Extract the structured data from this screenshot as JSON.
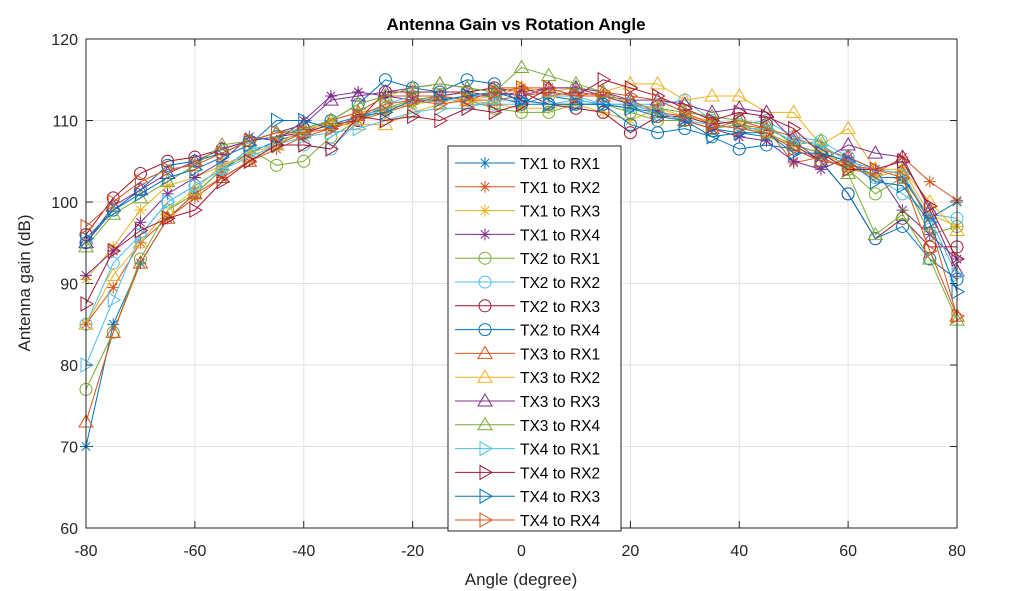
{
  "chart_data": {
    "type": "line",
    "title": "Antenna Gain vs Rotation Angle",
    "xlabel": "Angle (degree)",
    "ylabel": "Antenna gain (dB)",
    "xlim": [
      -80,
      80
    ],
    "ylim": [
      60,
      120
    ],
    "xticks": [
      -80,
      -60,
      -40,
      -20,
      0,
      20,
      40,
      60,
      80
    ],
    "yticks": [
      60,
      70,
      80,
      90,
      100,
      110,
      120
    ],
    "grid": true,
    "legend_position": "center-bottom",
    "x": [
      -80,
      -75,
      -70,
      -65,
      -60,
      -55,
      -50,
      -45,
      -40,
      -35,
      -30,
      -25,
      -20,
      -15,
      -10,
      -5,
      0,
      5,
      10,
      15,
      20,
      25,
      30,
      35,
      40,
      45,
      50,
      55,
      60,
      65,
      70,
      75,
      80
    ],
    "series": [
      {
        "name": "TX1 to RX1",
        "color": "#0072BD",
        "marker": "star",
        "values": [
          70,
          85,
          92.5,
          98,
          101,
          104,
          106,
          107.5,
          108.5,
          109.5,
          110.5,
          111.5,
          112,
          112.5,
          113,
          113,
          112,
          113,
          112.5,
          112,
          111.5,
          111,
          110,
          109,
          108.5,
          108,
          107,
          106,
          105,
          103,
          103,
          98,
          100
        ]
      },
      {
        "name": "TX1 to RX2",
        "color": "#D95319",
        "marker": "star",
        "values": [
          85,
          89.5,
          95,
          98,
          100.5,
          103,
          105,
          106.5,
          108,
          109,
          110,
          111,
          112,
          113,
          113.5,
          114,
          114,
          113,
          113.5,
          113,
          112,
          111,
          110.5,
          110,
          109.5,
          109,
          104.8,
          105.5,
          104,
          103.5,
          105.5,
          102.5,
          100.2
        ]
      },
      {
        "name": "TX1 to RX3",
        "color": "#EDB120",
        "marker": "star",
        "values": [
          90.5,
          94.5,
          99,
          102,
          103,
          104.5,
          106,
          107,
          108.5,
          110,
          111,
          111.5,
          112,
          112.5,
          112.5,
          112,
          111.5,
          111.5,
          112,
          111,
          110,
          111.5,
          110.5,
          110,
          109.5,
          108,
          107,
          106,
          104.5,
          103,
          104,
          98.5,
          97
        ]
      },
      {
        "name": "TX1 to RX4",
        "color": "#7E2F8E",
        "marker": "star",
        "values": [
          91,
          94,
          97.5,
          101,
          103,
          105,
          108,
          107.5,
          110,
          113,
          113.5,
          113,
          112.5,
          113,
          113.5,
          113,
          113.5,
          114,
          114,
          113,
          112,
          111,
          110,
          109,
          108,
          107.5,
          105,
          104,
          105.5,
          104,
          99,
          96,
          93
        ]
      },
      {
        "name": "TX2 to RX1",
        "color": "#77AC30",
        "marker": "circle",
        "values": [
          77,
          84,
          93,
          99,
          101,
          104,
          106.5,
          104.5,
          105,
          108,
          110,
          111.5,
          112.5,
          113,
          112.5,
          111.5,
          111,
          111,
          112,
          112,
          111,
          110,
          110,
          109,
          109.5,
          108.5,
          107,
          106,
          104,
          101,
          103,
          96,
          97
        ]
      },
      {
        "name": "TX2 to RX2",
        "color": "#4DBEEE",
        "marker": "circle",
        "values": [
          85,
          92.5,
          96,
          100,
          102,
          104,
          106.5,
          107,
          107,
          106.5,
          110,
          112,
          113,
          113,
          112,
          112,
          112,
          113,
          113,
          112,
          112,
          112,
          112.5,
          110,
          109.5,
          110,
          108,
          107.5,
          105.5,
          103,
          101,
          98.5,
          98
        ]
      },
      {
        "name": "TX2 to RX3",
        "color": "#A2142F",
        "marker": "circle",
        "values": [
          96,
          100.5,
          103.5,
          105,
          105.5,
          106.5,
          107.5,
          108,
          108.5,
          109.5,
          110,
          113.5,
          113.5,
          113.5,
          113.5,
          114,
          113.5,
          112,
          111.5,
          111,
          108.5,
          110.5,
          110.5,
          109.5,
          110,
          109.5,
          107,
          105,
          101,
          95.5,
          98,
          94.5,
          94.5
        ]
      },
      {
        "name": "TX2 to RX4",
        "color": "#0072BD",
        "marker": "circle",
        "values": [
          95,
          99,
          101.5,
          104.5,
          105,
          106,
          107.5,
          108,
          109,
          110,
          112,
          115,
          114,
          113.5,
          115,
          114.5,
          112,
          112,
          112,
          112,
          109.5,
          108.5,
          109,
          108,
          106.5,
          107,
          106.5,
          105,
          101,
          95.5,
          97,
          93,
          90.5
        ]
      },
      {
        "name": "TX3 to RX1",
        "color": "#D95319",
        "marker": "triangle-up",
        "values": [
          73,
          84,
          92.5,
          98,
          101,
          103,
          105,
          107,
          108.5,
          110,
          111,
          113,
          113,
          113,
          112.5,
          112.5,
          113,
          113.5,
          113,
          113,
          112.5,
          111,
          110,
          109,
          110,
          109,
          108,
          106.5,
          105.5,
          104,
          103.5,
          97.5,
          86
        ]
      },
      {
        "name": "TX3 to RX2",
        "color": "#EDB120",
        "marker": "triangle-up",
        "values": [
          85,
          91,
          95,
          99,
          101.5,
          104.5,
          105.5,
          107,
          109,
          109.5,
          109.5,
          109.5,
          111,
          112,
          112.5,
          113,
          114,
          113.5,
          114,
          113.5,
          114.5,
          114.5,
          112.5,
          113,
          113,
          111,
          111,
          107,
          109,
          104,
          104,
          100,
          96.5
        ]
      },
      {
        "name": "TX3 to RX3",
        "color": "#7E2F8E",
        "marker": "triangle-up",
        "values": [
          95,
          99.5,
          101.5,
          103.5,
          105,
          106.5,
          107.5,
          108.5,
          109.5,
          112.5,
          113,
          113.5,
          114,
          114.5,
          114,
          113.5,
          113,
          114,
          114,
          113.5,
          112.5,
          112.5,
          112,
          111,
          111.5,
          111,
          107.5,
          105,
          107,
          106,
          105.5,
          99,
          91.5
        ]
      },
      {
        "name": "TX3 to RX4",
        "color": "#77AC30",
        "marker": "triangle-up",
        "values": [
          94.5,
          98.5,
          100.5,
          102.5,
          104.5,
          107,
          107.5,
          108.5,
          109,
          110,
          112,
          113,
          114,
          114.5,
          114,
          113.5,
          116.5,
          115.5,
          114.5,
          113.5,
          112,
          111.5,
          111,
          110.5,
          110,
          109.5,
          107,
          107.5,
          103.5,
          96,
          98.5,
          93,
          85.5
        ]
      },
      {
        "name": "TX4 to RX1",
        "color": "#4DBEEE",
        "marker": "triangle-right",
        "values": [
          80,
          88,
          96,
          100,
          102,
          104,
          105.5,
          107,
          108,
          108.5,
          109,
          110,
          111,
          111.5,
          111.5,
          112.5,
          112.5,
          112,
          112.5,
          112,
          112,
          111,
          110,
          109.5,
          109,
          109,
          107.5,
          107,
          105,
          104,
          103.5,
          98,
          91
        ]
      },
      {
        "name": "TX4 to RX2",
        "color": "#A2142F",
        "marker": "triangle-right",
        "values": [
          87.5,
          94,
          96.5,
          98,
          99,
          102.5,
          105,
          107,
          107,
          106.5,
          110.5,
          110,
          110.5,
          110,
          111.5,
          111,
          112,
          114,
          113,
          115,
          114,
          113,
          111.5,
          110,
          111,
          110.5,
          109,
          106,
          104,
          104,
          105,
          99.5,
          93
        ]
      },
      {
        "name": "TX4 to RX3",
        "color": "#0072BD",
        "marker": "triangle-right",
        "values": [
          95.5,
          99,
          101,
          103,
          104,
          105.5,
          107,
          110,
          110,
          109,
          110.5,
          111,
          112.5,
          112.5,
          113,
          113.5,
          112.5,
          112,
          112,
          112,
          111.5,
          110.5,
          110,
          108,
          108.5,
          108.5,
          106,
          106,
          105,
          102.5,
          102,
          97.5,
          89
        ]
      },
      {
        "name": "TX4 to RX4",
        "color": "#D95319",
        "marker": "triangle-right",
        "values": [
          97,
          100,
          102.5,
          104,
          104.5,
          106,
          107.5,
          108.5,
          108.5,
          109,
          110.5,
          112,
          112.5,
          112,
          112.5,
          113.5,
          114,
          114,
          113,
          113.5,
          113,
          112.5,
          111,
          109.5,
          109,
          108.5,
          106.5,
          105,
          104.5,
          104,
          103,
          94,
          86
        ]
      }
    ]
  }
}
